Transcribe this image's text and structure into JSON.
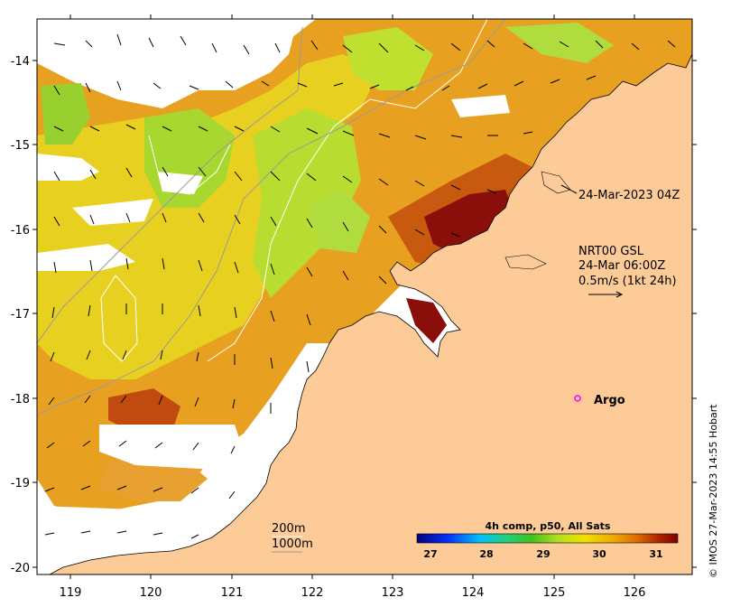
{
  "map": {
    "x_ticks": [
      "119",
      "120",
      "121",
      "122",
      "123",
      "124",
      "125",
      "126"
    ],
    "y_ticks": [
      "-14",
      "-15",
      "-16",
      "-17",
      "-18",
      "-19",
      "-20"
    ],
    "sat_time": "24-Mar-2023 04Z",
    "current_label": [
      "NRT00 GSL",
      "24-Mar 06:00Z",
      "0.5m/s (1kt 24h)"
    ],
    "argo_label": "Argo",
    "bathymetry": [
      "200m",
      "1000m"
    ],
    "colorbar": {
      "title": "4h comp, p50, All Sats",
      "ticks": [
        "27",
        "28",
        "29",
        "30",
        "31"
      ],
      "colors": [
        "#00007f",
        "#0033ff",
        "#00c0ff",
        "#20d080",
        "#40c020",
        "#b0e020",
        "#f0e000",
        "#f0b000",
        "#e07000",
        "#b02000",
        "#800000"
      ]
    },
    "credit": "© IMOS 27-Mar-2023 14:55 Hobart",
    "colors": {
      "land": "#fccb98",
      "argo": "#ff00ff",
      "warm": "#c84010",
      "hot": "#8a0f0a"
    }
  }
}
